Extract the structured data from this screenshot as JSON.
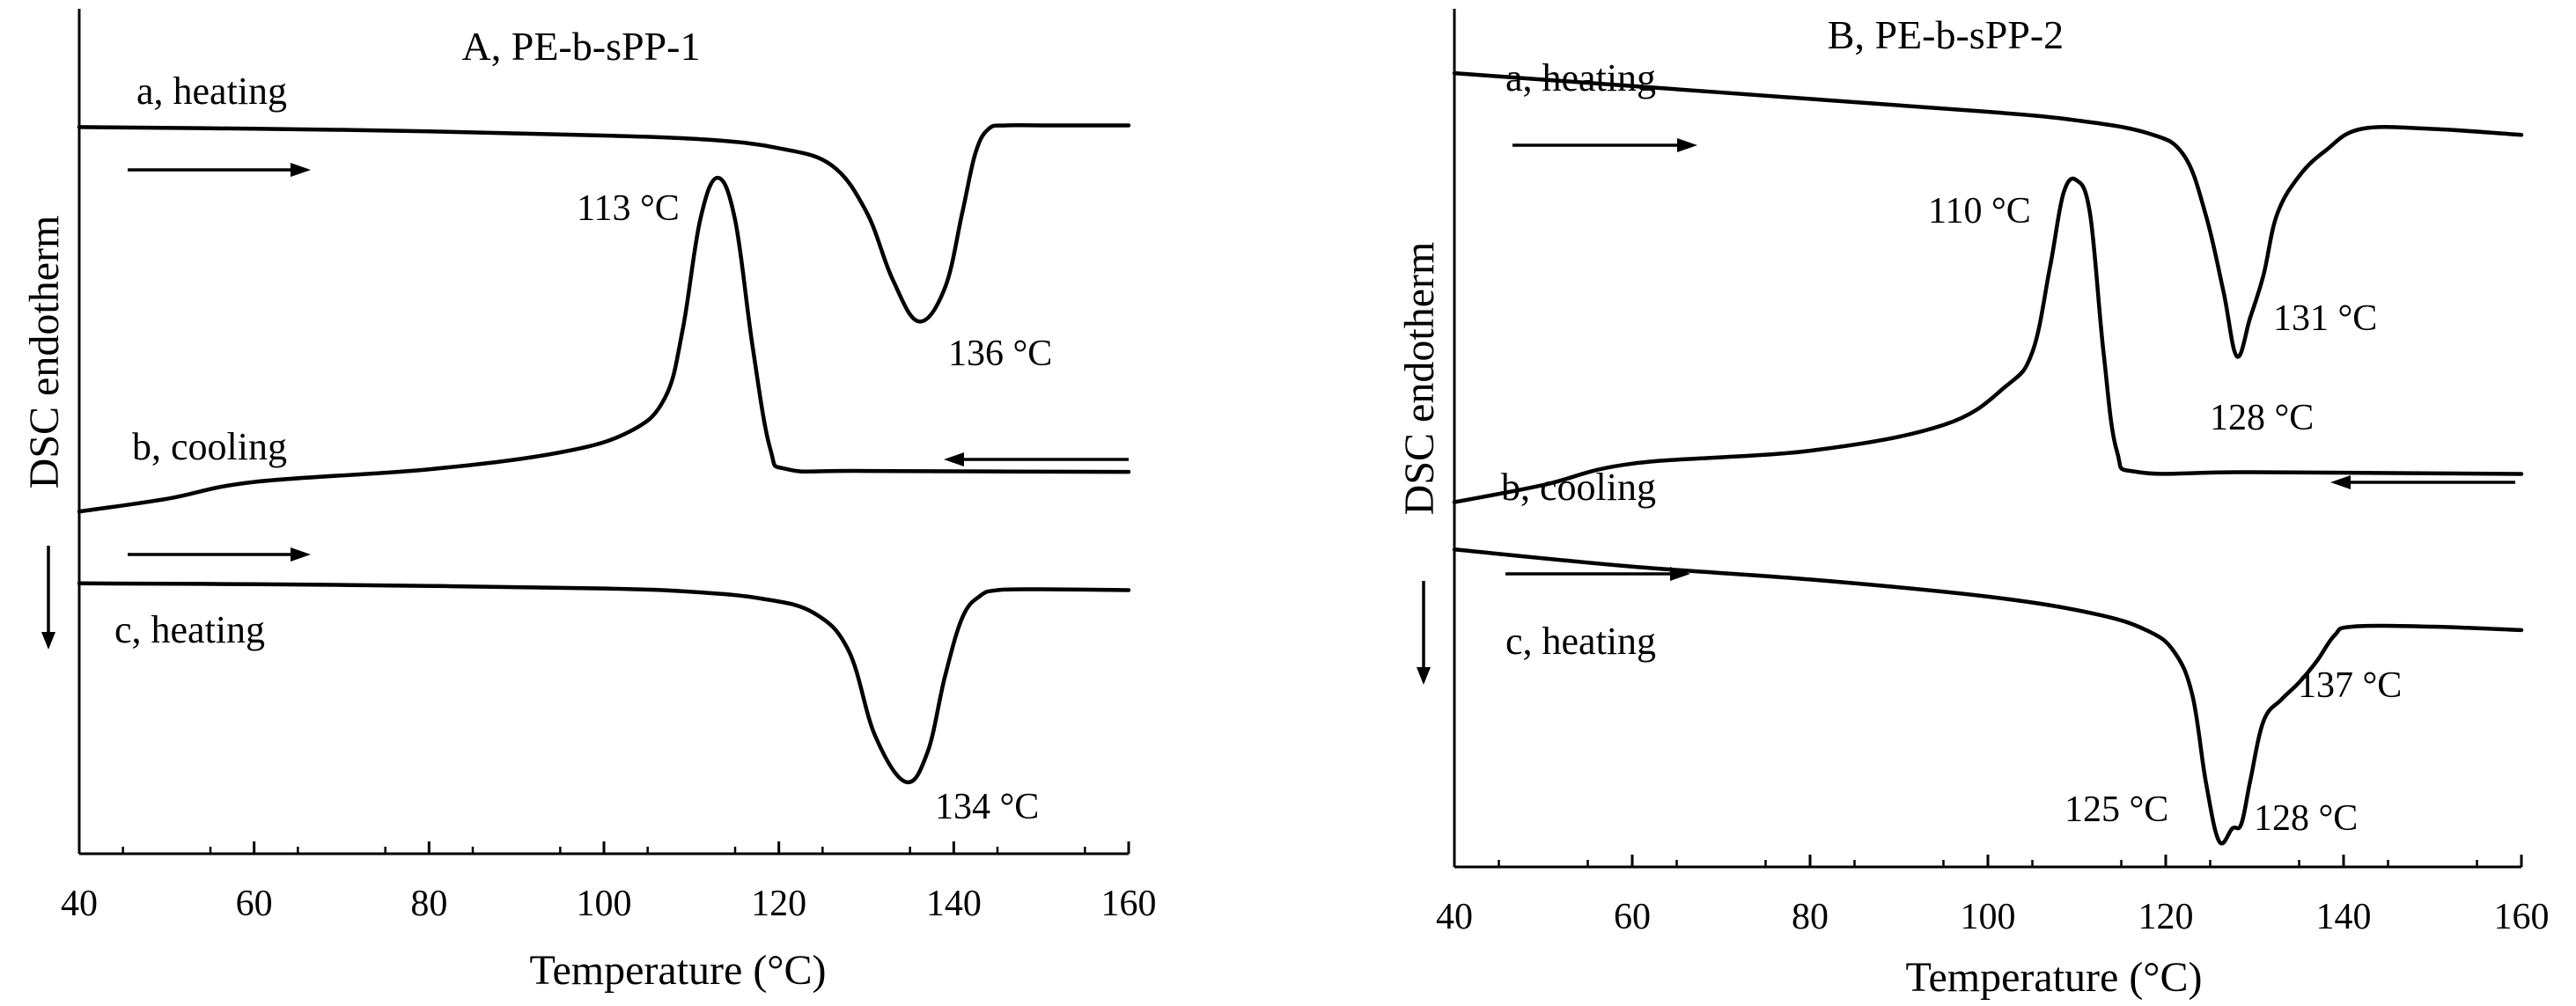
{
  "chart_data": [
    {
      "type": "line",
      "title": "A, PE-b-sPP-1",
      "xlabel": "Temperature (°C)",
      "ylabel": "DSC endotherm",
      "xlim": [
        40,
        160
      ],
      "xticks": [
        "40",
        "60",
        "80",
        "100",
        "120",
        "140",
        "160"
      ],
      "y_units": "arbitrary (heat flow, offset curves)",
      "ylim": [
        0,
        100
      ],
      "series": [
        {
          "name": "a, heating",
          "direction": "right",
          "x": [
            40,
            60,
            80,
            100,
            112,
            120,
            126,
            130,
            133,
            136,
            139,
            141,
            142.5,
            144,
            146,
            150,
            160
          ],
          "y": [
            86,
            85.8,
            85.5,
            85.0,
            84.5,
            83.5,
            81.5,
            76,
            68,
            63,
            67,
            76,
            83,
            85.8,
            86.2,
            86.2,
            86.2
          ]
        },
        {
          "name": "b, cooling",
          "direction": "left",
          "x": [
            40,
            50,
            60,
            80,
            95,
            103,
            107,
            109,
            111,
            113,
            115,
            117,
            119,
            121,
            130,
            160
          ],
          "y": [
            40.5,
            42,
            44,
            45.5,
            47.5,
            50,
            54,
            62,
            75,
            80,
            75,
            60,
            48,
            45.5,
            45.3,
            45.2
          ]
        },
        {
          "name": "c, heating",
          "direction": "right",
          "x": [
            40,
            60,
            80,
            100,
            110,
            118,
            124,
            128,
            131,
            134.5,
            137,
            139,
            141,
            143,
            145,
            150,
            160
          ],
          "y": [
            32,
            31.9,
            31.7,
            31.4,
            31,
            30.2,
            28.5,
            24,
            14,
            8.5,
            12,
            21,
            28,
            30.5,
            31.2,
            31.3,
            31.2
          ]
        }
      ],
      "annotations": [
        {
          "text": "113 °C",
          "x": 113,
          "series": "b, cooling"
        },
        {
          "text": "136 °C",
          "x": 136,
          "series": "a, heating"
        },
        {
          "text": "134 °C",
          "x": 134.5,
          "series": "c, heating"
        }
      ]
    },
    {
      "type": "line",
      "title": "B, PE-b-sPP-2",
      "xlabel": "Temperature (°C)",
      "ylabel": "DSC endotherm",
      "xlim": [
        40,
        160
      ],
      "xticks": [
        "40",
        "60",
        "80",
        "100",
        "120",
        "140",
        "160"
      ],
      "y_units": "arbitrary (heat flow, offset curves)",
      "ylim": [
        0,
        100
      ],
      "series": [
        {
          "name": "a, heating",
          "direction": "right",
          "x": [
            40,
            60,
            80,
            100,
            110,
            118,
            122,
            124.5,
            126.5,
            128,
            129.5,
            131,
            132.5,
            135,
            138,
            142,
            150,
            160
          ],
          "y": [
            92.5,
            91,
            89.5,
            88,
            87,
            85.5,
            83,
            76,
            67,
            59.5,
            64,
            69,
            76,
            80.5,
            83.5,
            86,
            86,
            85.3
          ]
        },
        {
          "name": "b, cooling",
          "direction": "left",
          "x": [
            40,
            50,
            60,
            80,
            95,
            102,
            105,
            107,
            108.5,
            110,
            111.5,
            113,
            114.5,
            117,
            130,
            160
          ],
          "y": [
            42.5,
            44.5,
            47,
            48.5,
            51.5,
            56,
            60,
            70,
            78.5,
            80,
            76,
            60,
            48.5,
            46,
            46,
            45.8
          ]
        },
        {
          "name": "c, heating",
          "direction": "right",
          "x": [
            40,
            60,
            80,
            100,
            112,
            118,
            121,
            123,
            124.5,
            126,
            127.5,
            128.5,
            129.5,
            131,
            133,
            135,
            137,
            139,
            141,
            150,
            160
          ],
          "y": [
            37,
            35,
            33.5,
            31.5,
            29.5,
            27.5,
            25,
            20,
            10,
            3,
            4.5,
            5,
            10,
            17,
            19.5,
            21.5,
            24,
            27,
            28,
            28,
            27.6
          ]
        }
      ],
      "annotations": [
        {
          "text": "110 °C",
          "x": 110,
          "series": "b, cooling"
        },
        {
          "text": "131 °C",
          "x": 131,
          "series": "a, heating"
        },
        {
          "text": "128 °C",
          "x": 128,
          "series": "a, heating"
        },
        {
          "text": "137 °C",
          "x": 137,
          "series": "c, heating"
        },
        {
          "text": "125 °C",
          "x": 125.5,
          "series": "c, heating"
        },
        {
          "text": "128 °C",
          "x": 128.5,
          "series": "c, heating"
        }
      ]
    }
  ]
}
